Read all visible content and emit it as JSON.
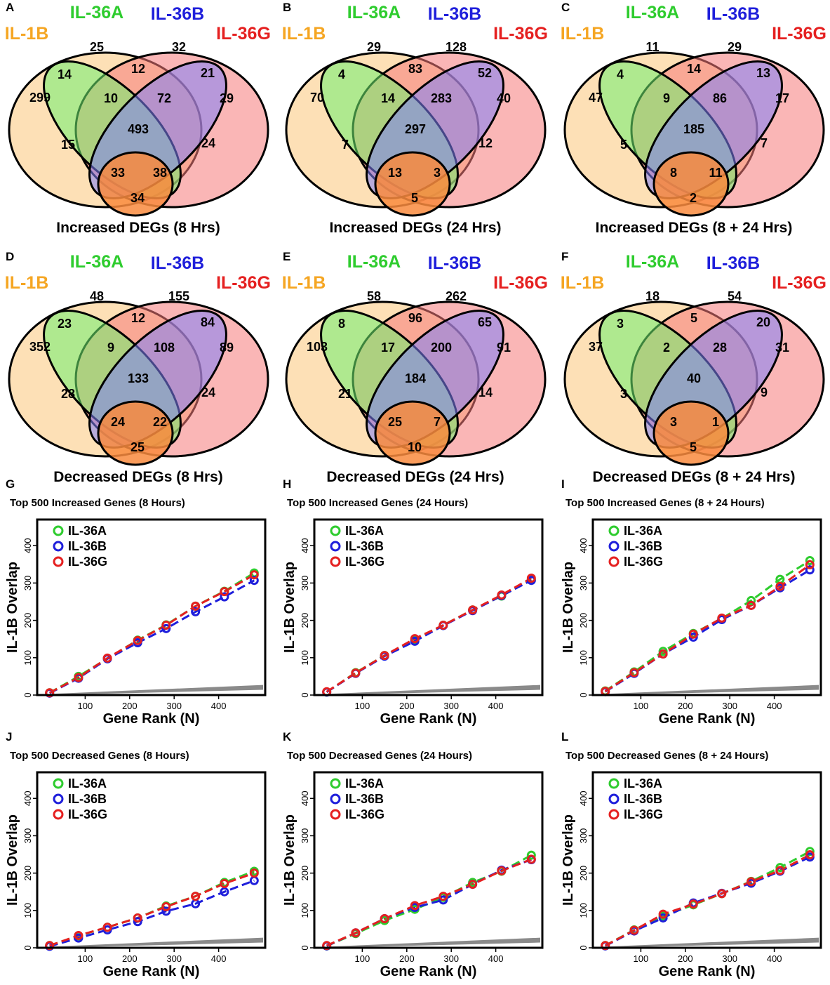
{
  "colors": {
    "il1b": "#f5a623",
    "il36a": "#2ecc2e",
    "il36b": "#1f1fdb",
    "il36g": "#e52020",
    "fill_il1b": "#fcc67a",
    "fill_il36a": "#6ff06f",
    "fill_il36b": "#7f7ff7",
    "fill_il36g": "#f57a7a",
    "band": "#8a8a8a"
  },
  "set_names": {
    "a": "IL-1B",
    "b": "IL-36A",
    "c": "IL-36B",
    "d": "IL-36G"
  },
  "chart_data": [
    {
      "panel": "A",
      "type": "venn",
      "title": "Increased DEGs (8 Hrs)",
      "sets": [
        "IL-1B",
        "IL-36A",
        "IL-36B",
        "IL-36G"
      ],
      "regions": {
        "a": 299,
        "b": 25,
        "c": 32,
        "d": 29,
        "ab": 14,
        "bc": 12,
        "cd": 21,
        "ad": 34,
        "ac": 15,
        "bd": 24,
        "abc": 10,
        "bcd": 72,
        "acd": 33,
        "abd": 38,
        "abcd": 493
      }
    },
    {
      "panel": "B",
      "type": "venn",
      "title": "Increased DEGs (24 Hrs)",
      "sets": [
        "IL-1B",
        "IL-36A",
        "IL-36B",
        "IL-36G"
      ],
      "regions": {
        "a": 70,
        "b": 29,
        "c": 128,
        "d": 40,
        "ab": 4,
        "bc": 83,
        "cd": 52,
        "ad": 5,
        "ac": 7,
        "bd": 12,
        "abc": 14,
        "bcd": 283,
        "acd": 13,
        "abd": 3,
        "abcd": 297
      }
    },
    {
      "panel": "C",
      "type": "venn",
      "title": "Increased DEGs (8 + 24 Hrs)",
      "sets": [
        "IL-1B",
        "IL-36A",
        "IL-36B",
        "IL-36G"
      ],
      "regions": {
        "a": 47,
        "b": 11,
        "c": 29,
        "d": 17,
        "ab": 4,
        "bc": 14,
        "cd": 13,
        "ad": 2,
        "ac": 5,
        "bd": 7,
        "abc": 9,
        "bcd": 86,
        "acd": 8,
        "abd": 11,
        "abcd": 185
      }
    },
    {
      "panel": "D",
      "type": "venn",
      "title": "Decreased DEGs (8 Hrs)",
      "sets": [
        "IL-1B",
        "IL-36A",
        "IL-36B",
        "IL-36G"
      ],
      "regions": {
        "a": 352,
        "b": 48,
        "c": 155,
        "d": 89,
        "ab": 23,
        "bc": 12,
        "cd": 84,
        "ad": 25,
        "ac": 28,
        "bd": 24,
        "abc": 9,
        "bcd": 108,
        "acd": 24,
        "abd": 22,
        "abcd": 133
      }
    },
    {
      "panel": "E",
      "type": "venn",
      "title": "Decreased DEGs (24 Hrs)",
      "sets": [
        "IL-1B",
        "IL-36A",
        "IL-36B",
        "IL-36G"
      ],
      "regions": {
        "a": 103,
        "b": 58,
        "c": 262,
        "d": 91,
        "ab": 8,
        "bc": 96,
        "cd": 65,
        "ad": 10,
        "ac": 21,
        "bd": 14,
        "abc": 17,
        "bcd": 200,
        "acd": 25,
        "abd": 7,
        "abcd": 184
      }
    },
    {
      "panel": "F",
      "type": "venn",
      "title": "Decreased DEGs (8 + 24 Hrs)",
      "sets": [
        "IL-1B",
        "IL-36A",
        "IL-36B",
        "IL-36G"
      ],
      "regions": {
        "a": 37,
        "b": 18,
        "c": 54,
        "d": 31,
        "ab": 3,
        "bc": 5,
        "cd": 20,
        "ad": 5,
        "ac": 3,
        "bd": 9,
        "abc": 2,
        "bcd": 28,
        "acd": 3,
        "abd": 1,
        "abcd": 40
      }
    },
    {
      "panel": "G",
      "type": "line",
      "title": "Top 500 Increased Genes (8 Hours)",
      "xlabel": "Gene Rank (N)",
      "ylabel": "IL-1B Overlap",
      "xlim": [
        0,
        500
      ],
      "ylim": [
        0,
        470
      ],
      "xticks": [
        100,
        200,
        300,
        400
      ],
      "yticks": [
        0,
        100,
        200,
        300,
        400
      ],
      "x": [
        20,
        85,
        150,
        218,
        282,
        348,
        413,
        480
      ],
      "band": {
        "x": [
          20,
          500
        ],
        "low": [
          0,
          14
        ],
        "high": [
          3,
          27
        ]
      },
      "series": [
        {
          "name": "IL-36A",
          "color": "#2ecc2e",
          "values": [
            6,
            50,
            98,
            147,
            188,
            238,
            278,
            327
          ]
        },
        {
          "name": "IL-36B",
          "color": "#1f1fdb",
          "values": [
            5,
            45,
            97,
            140,
            178,
            223,
            263,
            307
          ]
        },
        {
          "name": "IL-36G",
          "color": "#e52020",
          "values": [
            6,
            47,
            99,
            146,
            187,
            238,
            277,
            322
          ]
        }
      ]
    },
    {
      "panel": "H",
      "type": "line",
      "title": "Top 500 Increased Genes (24 Hours)",
      "xlabel": "Gene Rank (N)",
      "ylabel": "IL-1B Overlap",
      "xlim": [
        0,
        500
      ],
      "ylim": [
        0,
        470
      ],
      "xticks": [
        100,
        200,
        300,
        400
      ],
      "yticks": [
        0,
        100,
        200,
        300,
        400
      ],
      "x": [
        20,
        85,
        150,
        218,
        282,
        348,
        413,
        480
      ],
      "band": {
        "x": [
          20,
          500
        ],
        "low": [
          0,
          14
        ],
        "high": [
          3,
          27
        ]
      },
      "series": [
        {
          "name": "IL-36A",
          "color": "#2ecc2e",
          "values": [
            8,
            60,
            106,
            148,
            187,
            228,
            265,
            309
          ]
        },
        {
          "name": "IL-36B",
          "color": "#1f1fdb",
          "values": [
            8,
            58,
            104,
            144,
            186,
            226,
            266,
            307
          ]
        },
        {
          "name": "IL-36G",
          "color": "#e52020",
          "values": [
            9,
            59,
            106,
            151,
            187,
            228,
            268,
            313
          ]
        }
      ]
    },
    {
      "panel": "I",
      "type": "line",
      "title": "Top 500 Increased Genes (8 + 24 Hours)",
      "xlabel": "Gene Rank (N)",
      "ylabel": "IL-1B Overlap",
      "xlim": [
        0,
        500
      ],
      "ylim": [
        0,
        470
      ],
      "xticks": [
        100,
        200,
        300,
        400
      ],
      "yticks": [
        0,
        100,
        200,
        300,
        400
      ],
      "x": [
        20,
        85,
        150,
        218,
        282,
        348,
        413,
        480
      ],
      "band": {
        "x": [
          20,
          500
        ],
        "low": [
          0,
          14
        ],
        "high": [
          3,
          27
        ]
      },
      "series": [
        {
          "name": "IL-36A",
          "color": "#2ecc2e",
          "values": [
            11,
            62,
            117,
            165,
            205,
            253,
            310,
            360
          ]
        },
        {
          "name": "IL-36B",
          "color": "#1f1fdb",
          "values": [
            9,
            58,
            110,
            155,
            202,
            240,
            287,
            335
          ]
        },
        {
          "name": "IL-36G",
          "color": "#e52020",
          "values": [
            10,
            60,
            110,
            163,
            206,
            240,
            291,
            349
          ]
        }
      ]
    },
    {
      "panel": "J",
      "type": "line",
      "title": "Top 500 Decreased Genes (8 Hours)",
      "xlabel": "Gene Rank (N)",
      "ylabel": "IL-1B Overlap",
      "xlim": [
        0,
        500
      ],
      "ylim": [
        0,
        470
      ],
      "xticks": [
        100,
        200,
        300,
        400
      ],
      "yticks": [
        0,
        100,
        200,
        300,
        400
      ],
      "x": [
        20,
        85,
        150,
        218,
        282,
        348,
        413,
        480
      ],
      "band": {
        "x": [
          20,
          500
        ],
        "low": [
          0,
          14
        ],
        "high": [
          3,
          27
        ]
      },
      "series": [
        {
          "name": "IL-36A",
          "color": "#2ecc2e",
          "values": [
            6,
            32,
            55,
            80,
            112,
            138,
            175,
            205
          ]
        },
        {
          "name": "IL-36B",
          "color": "#1f1fdb",
          "values": [
            4,
            26,
            48,
            70,
            98,
            118,
            150,
            180
          ]
        },
        {
          "name": "IL-36G",
          "color": "#e52020",
          "values": [
            6,
            33,
            55,
            80,
            110,
            138,
            172,
            200
          ]
        }
      ]
    },
    {
      "panel": "K",
      "type": "line",
      "title": "Top 500 Decreased Genes (24 Hours)",
      "xlabel": "Gene Rank (N)",
      "ylabel": "IL-1B Overlap",
      "xlim": [
        0,
        500
      ],
      "ylim": [
        0,
        470
      ],
      "xticks": [
        100,
        200,
        300,
        400
      ],
      "yticks": [
        0,
        100,
        200,
        300,
        400
      ],
      "x": [
        20,
        85,
        150,
        218,
        282,
        348,
        413,
        480
      ],
      "band": {
        "x": [
          20,
          500
        ],
        "low": [
          0,
          14
        ],
        "high": [
          3,
          27
        ]
      },
      "series": [
        {
          "name": "IL-36A",
          "color": "#2ecc2e",
          "values": [
            5,
            38,
            73,
            103,
            135,
            175,
            205,
            248
          ]
        },
        {
          "name": "IL-36B",
          "color": "#1f1fdb",
          "values": [
            5,
            40,
            78,
            108,
            128,
            170,
            208,
            236
          ]
        },
        {
          "name": "IL-36G",
          "color": "#e52020",
          "values": [
            6,
            40,
            78,
            113,
            138,
            170,
            206,
            237
          ]
        }
      ]
    },
    {
      "panel": "L",
      "type": "line",
      "title": "Top 500 Decreased Genes (8 + 24 Hours)",
      "xlabel": "Gene Rank (N)",
      "ylabel": "IL-1B Overlap",
      "xlim": [
        0,
        500
      ],
      "ylim": [
        0,
        470
      ],
      "xticks": [
        100,
        200,
        300,
        400
      ],
      "yticks": [
        0,
        100,
        200,
        300,
        400
      ],
      "x": [
        20,
        85,
        150,
        218,
        282,
        348,
        413,
        480
      ],
      "band": {
        "x": [
          20,
          500
        ],
        "low": [
          0,
          14
        ],
        "high": [
          3,
          27
        ]
      },
      "series": [
        {
          "name": "IL-36A",
          "color": "#2ecc2e",
          "values": [
            6,
            48,
            85,
            115,
            145,
            178,
            215,
            258
          ]
        },
        {
          "name": "IL-36B",
          "color": "#1f1fdb",
          "values": [
            5,
            45,
            80,
            120,
            146,
            173,
            205,
            243
          ]
        },
        {
          "name": "IL-36G",
          "color": "#e52020",
          "values": [
            6,
            47,
            90,
            117,
            145,
            177,
            207,
            249
          ]
        }
      ]
    }
  ]
}
